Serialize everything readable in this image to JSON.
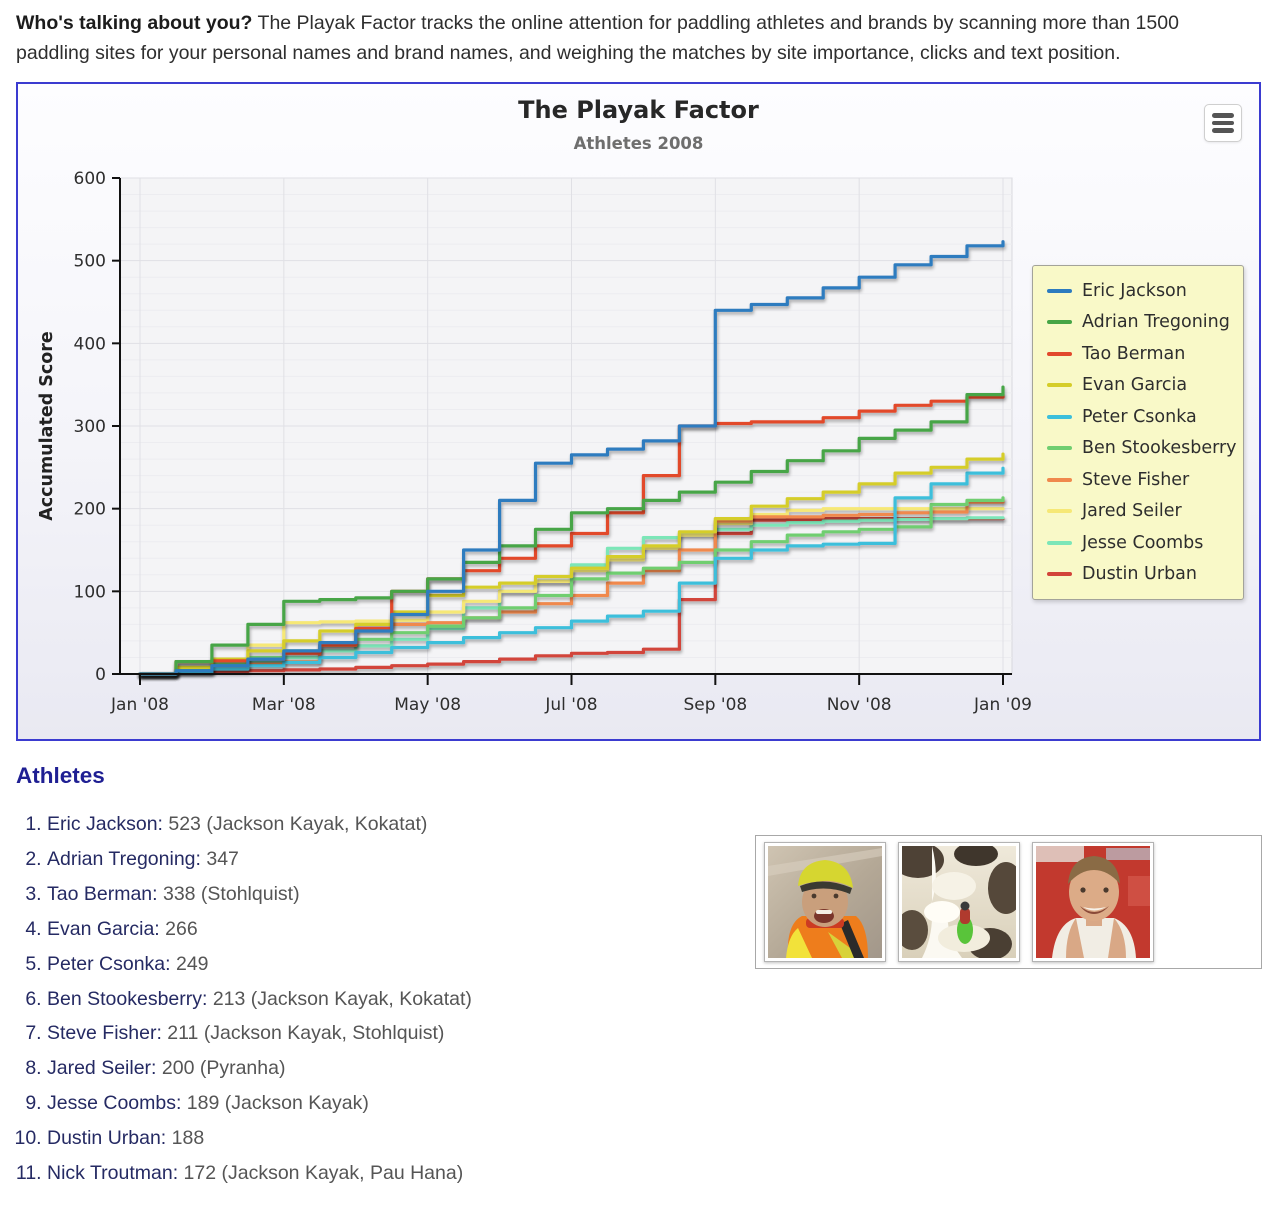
{
  "intro": {
    "lead": "Who's talking about you?",
    "text": " The Playak Factor tracks the online attention for paddling athletes and brands by scanning more than 1500 paddling sites for your personal names and brand names, and weighing the matches by site importance, clicks and text position."
  },
  "chart": {
    "title": "The Playak Factor",
    "subtitle": "Athletes 2008",
    "y_axis_title": "Accumulated Score"
  },
  "chart_data": {
    "type": "line",
    "title": "The Playak Factor",
    "subtitle": "Athletes 2008",
    "xlabel": "",
    "ylabel": "Accumulated Score",
    "ylim": [
      0,
      600
    ],
    "y_ticks": [
      0,
      100,
      200,
      300,
      400,
      500,
      600
    ],
    "x_tick_labels": [
      "Jan '08",
      "Mar '08",
      "May '08",
      "Jul '08",
      "Sep '08",
      "Nov '08",
      "Jan '09"
    ],
    "x_tick_positions": [
      0,
      2,
      4,
      6,
      8,
      10,
      12
    ],
    "grid": true,
    "legend_position": "right",
    "x_unit": "months since Jan 1 2008",
    "x": [
      0,
      0.5,
      1,
      1.5,
      2,
      2.5,
      3,
      3.5,
      4,
      4.5,
      5,
      5.5,
      6,
      6.5,
      7,
      7.5,
      8,
      8.5,
      9,
      9.5,
      10,
      10.5,
      11,
      11.5,
      12
    ],
    "series": [
      {
        "name": "Eric Jackson",
        "color": "#2d7bbf",
        "values": [
          0,
          4,
          10,
          18,
          28,
          38,
          52,
          72,
          100,
          150,
          210,
          255,
          265,
          272,
          282,
          300,
          440,
          447,
          455,
          467,
          480,
          495,
          505,
          518,
          523
        ]
      },
      {
        "name": "Adrian Tregoning",
        "color": "#46a546",
        "values": [
          0,
          15,
          35,
          60,
          88,
          90,
          92,
          100,
          115,
          135,
          155,
          175,
          195,
          200,
          210,
          220,
          232,
          245,
          258,
          270,
          285,
          295,
          305,
          338,
          347
        ]
      },
      {
        "name": "Tao Berman",
        "color": "#e2492c",
        "values": [
          0,
          15,
          16,
          18,
          25,
          35,
          55,
          100,
          115,
          125,
          140,
          155,
          170,
          195,
          240,
          300,
          303,
          305,
          305,
          310,
          318,
          325,
          330,
          335,
          338
        ]
      },
      {
        "name": "Evan Garcia",
        "color": "#d5cd29",
        "values": [
          0,
          8,
          18,
          28,
          40,
          52,
          60,
          75,
          95,
          105,
          110,
          118,
          128,
          142,
          155,
          172,
          188,
          203,
          212,
          220,
          230,
          243,
          250,
          260,
          266
        ]
      },
      {
        "name": "Peter Csonka",
        "color": "#3cbfdb",
        "values": [
          0,
          2,
          6,
          10,
          14,
          20,
          26,
          32,
          38,
          44,
          50,
          56,
          64,
          70,
          76,
          110,
          140,
          150,
          155,
          157,
          158,
          213,
          230,
          243,
          249
        ]
      },
      {
        "name": "Ben Stookesberry",
        "color": "#70ce70",
        "values": [
          0,
          5,
          12,
          20,
          28,
          35,
          42,
          50,
          58,
          68,
          80,
          95,
          115,
          122,
          128,
          135,
          150,
          160,
          168,
          172,
          175,
          178,
          205,
          210,
          213
        ]
      },
      {
        "name": "Steve Fisher",
        "color": "#f0894d",
        "values": [
          0,
          3,
          8,
          12,
          15,
          35,
          55,
          60,
          62,
          68,
          75,
          85,
          95,
          110,
          125,
          150,
          185,
          190,
          190,
          192,
          193,
          195,
          196,
          208,
          211
        ]
      },
      {
        "name": "Jared Seiler",
        "color": "#f6e876",
        "values": [
          0,
          15,
          18,
          35,
          62,
          63,
          64,
          65,
          75,
          88,
          100,
          112,
          125,
          138,
          152,
          168,
          182,
          193,
          198,
          200,
          200,
          200,
          200,
          200,
          200
        ]
      },
      {
        "name": "Jesse Coombs",
        "color": "#7ce6b8",
        "values": [
          0,
          3,
          8,
          14,
          20,
          28,
          34,
          42,
          55,
          80,
          100,
          112,
          132,
          152,
          165,
          170,
          175,
          180,
          183,
          185,
          186,
          187,
          188,
          189,
          189
        ]
      },
      {
        "name": "Dustin Urban",
        "color": "#d2443a",
        "values": [
          0,
          2,
          3,
          4,
          5,
          6,
          8,
          10,
          12,
          15,
          18,
          22,
          25,
          26,
          30,
          90,
          170,
          186,
          187,
          188,
          188,
          188,
          188,
          188,
          188
        ]
      }
    ]
  },
  "athletes_section": {
    "heading": "Athletes",
    "list": [
      {
        "name": "Eric Jackson",
        "score": "523",
        "sponsors": "(Jackson Kayak, Kokatat)"
      },
      {
        "name": "Adrian Tregoning",
        "score": "347",
        "sponsors": ""
      },
      {
        "name": "Tao Berman",
        "score": "338",
        "sponsors": "(Stohlquist)"
      },
      {
        "name": "Evan Garcia",
        "score": "266",
        "sponsors": ""
      },
      {
        "name": "Peter Csonka",
        "score": "249",
        "sponsors": ""
      },
      {
        "name": "Ben Stookesberry",
        "score": "213",
        "sponsors": "(Jackson Kayak, Kokatat)"
      },
      {
        "name": "Steve Fisher",
        "score": "211",
        "sponsors": "(Jackson Kayak, Stohlquist)"
      },
      {
        "name": "Jared Seiler",
        "score": "200",
        "sponsors": "(Pyranha)"
      },
      {
        "name": "Jesse Coombs",
        "score": "189",
        "sponsors": "(Jackson Kayak)"
      },
      {
        "name": "Dustin Urban",
        "score": "188",
        "sponsors": ""
      },
      {
        "name": "Nick Troutman",
        "score": "172",
        "sponsors": "(Jackson Kayak, Pau Hana)"
      }
    ]
  },
  "colors": {
    "panel_border": "#3b3bd0",
    "legend_bg": "#f9f9c8",
    "plot_bg": "#f4f4f6",
    "heading": "#1f1f93",
    "athlete_name": "#252a63"
  }
}
